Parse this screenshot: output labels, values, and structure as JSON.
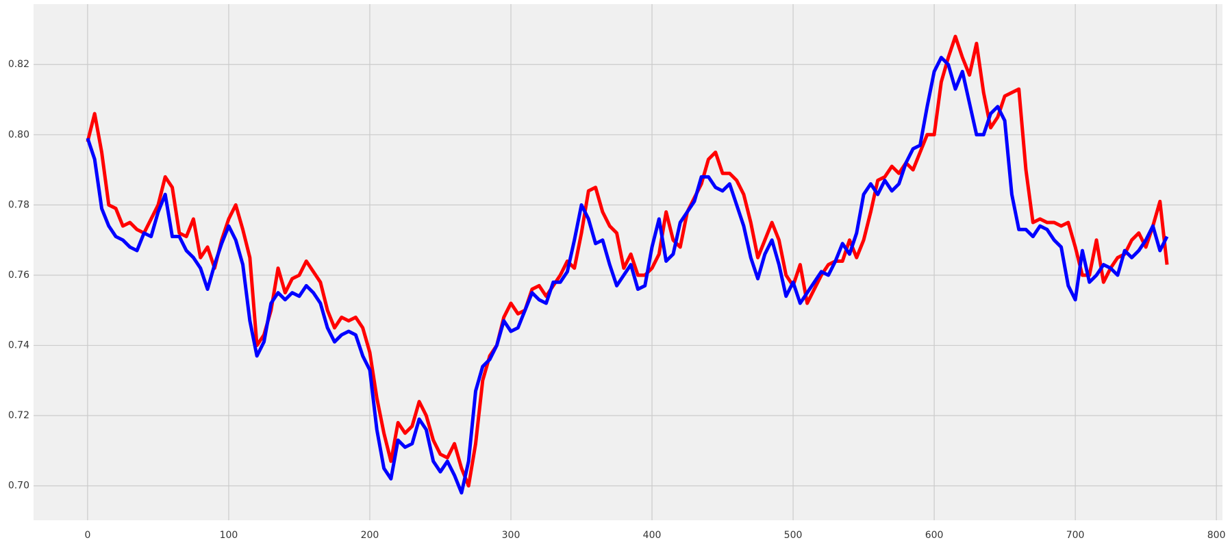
{
  "chart_data": {
    "type": "line",
    "x": [
      0,
      5,
      10,
      15,
      20,
      25,
      30,
      35,
      40,
      45,
      50,
      55,
      60,
      65,
      70,
      75,
      80,
      85,
      90,
      95,
      100,
      105,
      110,
      115,
      120,
      125,
      130,
      135,
      140,
      145,
      150,
      155,
      160,
      165,
      170,
      175,
      180,
      185,
      190,
      195,
      200,
      205,
      210,
      215,
      220,
      225,
      230,
      235,
      240,
      245,
      250,
      255,
      260,
      265,
      270,
      275,
      280,
      285,
      290,
      295,
      300,
      305,
      310,
      315,
      320,
      325,
      330,
      335,
      340,
      345,
      350,
      355,
      360,
      365,
      370,
      375,
      380,
      385,
      390,
      395,
      400,
      405,
      410,
      415,
      420,
      425,
      430,
      435,
      440,
      445,
      450,
      455,
      460,
      465,
      470,
      475,
      480,
      485,
      490,
      495,
      500,
      505,
      510,
      515,
      520,
      525,
      530,
      535,
      540,
      545,
      550,
      555,
      560,
      565,
      570,
      575,
      580,
      585,
      590,
      595,
      600,
      605,
      610,
      615,
      620,
      625,
      630,
      635,
      640,
      645,
      650,
      655,
      660,
      665,
      670,
      675,
      680,
      685,
      690,
      695,
      700,
      705,
      710,
      715,
      720,
      725,
      730,
      735,
      740,
      745,
      750,
      755,
      760,
      765
    ],
    "series": [
      {
        "color": "#ff0000",
        "values": [
          0.798,
          0.806,
          0.795,
          0.78,
          0.779,
          0.774,
          0.775,
          0.773,
          0.772,
          0.776,
          0.78,
          0.788,
          0.785,
          0.772,
          0.771,
          0.776,
          0.765,
          0.768,
          0.762,
          0.77,
          0.776,
          0.78,
          0.773,
          0.765,
          0.74,
          0.743,
          0.75,
          0.762,
          0.755,
          0.759,
          0.76,
          0.764,
          0.761,
          0.758,
          0.75,
          0.745,
          0.748,
          0.747,
          0.748,
          0.745,
          0.738,
          0.725,
          0.715,
          0.707,
          0.718,
          0.715,
          0.717,
          0.724,
          0.72,
          0.713,
          0.709,
          0.708,
          0.712,
          0.705,
          0.7,
          0.712,
          0.73,
          0.737,
          0.74,
          0.748,
          0.752,
          0.749,
          0.75,
          0.756,
          0.757,
          0.754,
          0.757,
          0.76,
          0.764,
          0.762,
          0.772,
          0.784,
          0.785,
          0.778,
          0.774,
          0.772,
          0.762,
          0.766,
          0.76,
          0.76,
          0.762,
          0.766,
          0.778,
          0.77,
          0.768,
          0.778,
          0.782,
          0.786,
          0.793,
          0.795,
          0.789,
          0.789,
          0.787,
          0.783,
          0.775,
          0.765,
          0.77,
          0.775,
          0.77,
          0.76,
          0.757,
          0.763,
          0.752,
          0.756,
          0.76,
          0.763,
          0.764,
          0.764,
          0.77,
          0.765,
          0.77,
          0.778,
          0.787,
          0.788,
          0.791,
          0.789,
          0.792,
          0.79,
          0.795,
          0.8,
          0.8,
          0.815,
          0.822,
          0.828,
          0.822,
          0.817,
          0.826,
          0.812,
          0.802,
          0.805,
          0.811,
          0.812,
          0.813,
          0.79,
          0.775,
          0.776,
          0.775,
          0.775,
          0.774,
          0.775,
          0.768,
          0.76,
          0.76,
          0.77,
          0.758,
          0.762,
          0.765,
          0.766,
          0.77,
          0.772,
          0.768,
          0.774,
          0.781,
          0.763
        ]
      },
      {
        "color": "#0000ff",
        "values": [
          0.799,
          0.793,
          0.779,
          0.774,
          0.771,
          0.77,
          0.768,
          0.767,
          0.772,
          0.771,
          0.778,
          0.783,
          0.771,
          0.771,
          0.767,
          0.765,
          0.762,
          0.756,
          0.763,
          0.769,
          0.774,
          0.77,
          0.763,
          0.747,
          0.737,
          0.741,
          0.752,
          0.755,
          0.753,
          0.755,
          0.754,
          0.757,
          0.755,
          0.752,
          0.745,
          0.741,
          0.743,
          0.744,
          0.743,
          0.737,
          0.733,
          0.716,
          0.705,
          0.702,
          0.713,
          0.711,
          0.712,
          0.719,
          0.716,
          0.707,
          0.704,
          0.707,
          0.703,
          0.698,
          0.707,
          0.727,
          0.734,
          0.736,
          0.74,
          0.747,
          0.744,
          0.745,
          0.75,
          0.755,
          0.753,
          0.752,
          0.758,
          0.758,
          0.761,
          0.77,
          0.78,
          0.776,
          0.769,
          0.77,
          0.763,
          0.757,
          0.76,
          0.763,
          0.756,
          0.757,
          0.768,
          0.776,
          0.764,
          0.766,
          0.775,
          0.778,
          0.781,
          0.788,
          0.788,
          0.785,
          0.784,
          0.786,
          0.78,
          0.774,
          0.765,
          0.759,
          0.766,
          0.77,
          0.763,
          0.754,
          0.758,
          0.752,
          0.755,
          0.758,
          0.761,
          0.76,
          0.764,
          0.769,
          0.766,
          0.772,
          0.783,
          0.786,
          0.783,
          0.787,
          0.784,
          0.786,
          0.792,
          0.796,
          0.797,
          0.808,
          0.818,
          0.822,
          0.82,
          0.813,
          0.818,
          0.809,
          0.8,
          0.8,
          0.806,
          0.808,
          0.804,
          0.783,
          0.773,
          0.773,
          0.771,
          0.774,
          0.773,
          0.77,
          0.768,
          0.757,
          0.753,
          0.767,
          0.758,
          0.76,
          0.763,
          0.762,
          0.76,
          0.767,
          0.765,
          0.767,
          0.77,
          0.774,
          0.767,
          0.771
        ]
      }
    ],
    "xlim": [
      -38.3,
      804.3
    ],
    "xticks": [
      0,
      100,
      200,
      300,
      400,
      500,
      600,
      700,
      800
    ],
    "ylim": [
      0.6902,
      0.8372
    ],
    "yticks": [
      {
        "value": 0.7,
        "label": "0.70"
      },
      0.72,
      0.74,
      0.76,
      0.78,
      {
        "value": 0.8,
        "label": "0.80"
      },
      0.82
    ],
    "grid": true
  }
}
